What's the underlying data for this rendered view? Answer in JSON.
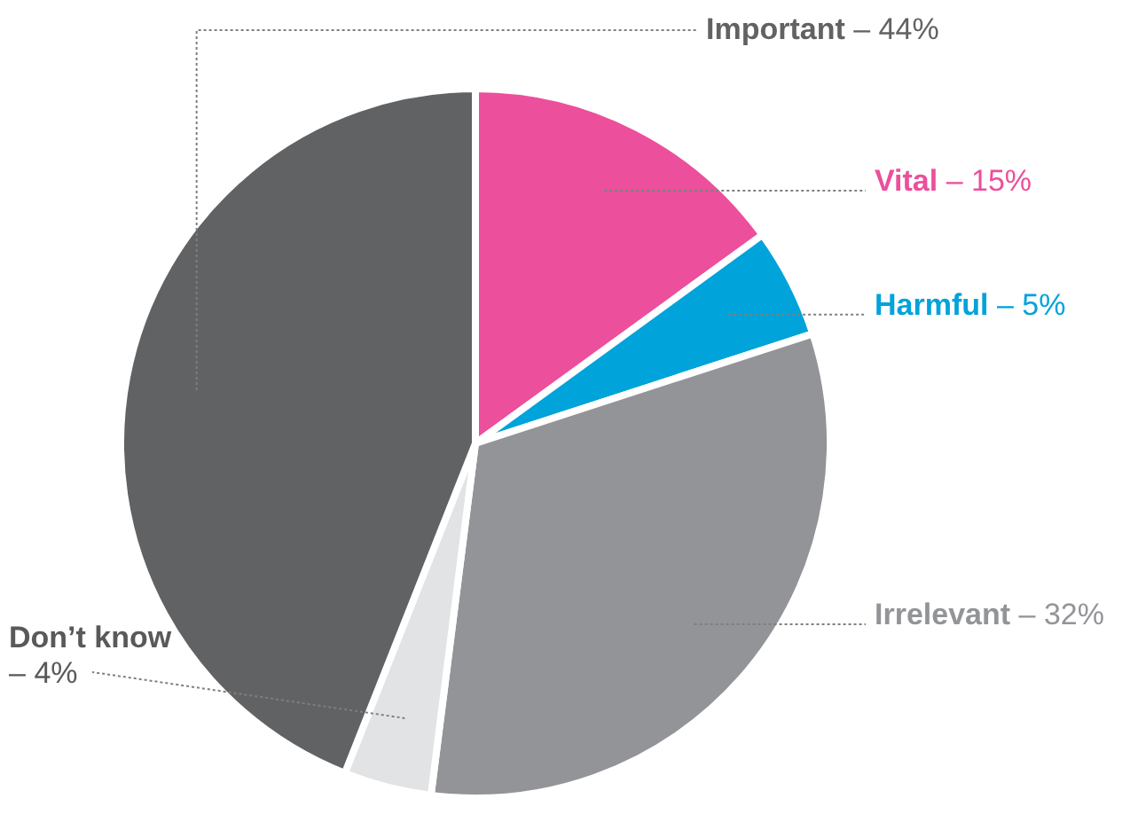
{
  "chart_data": {
    "type": "pie",
    "categories": [
      "Vital –",
      "Harmful –",
      "Irrelevant –",
      "Don’t know –",
      "Important –"
    ],
    "values": [
      15,
      5,
      32,
      4,
      44
    ],
    "colors": [
      "#ec4f9b",
      "#00a3da",
      "#939498",
      "#e2e3e5",
      "#616264"
    ],
    "value_labels": [
      "15%",
      "5%",
      "32%",
      "4%",
      "44%"
    ]
  }
}
